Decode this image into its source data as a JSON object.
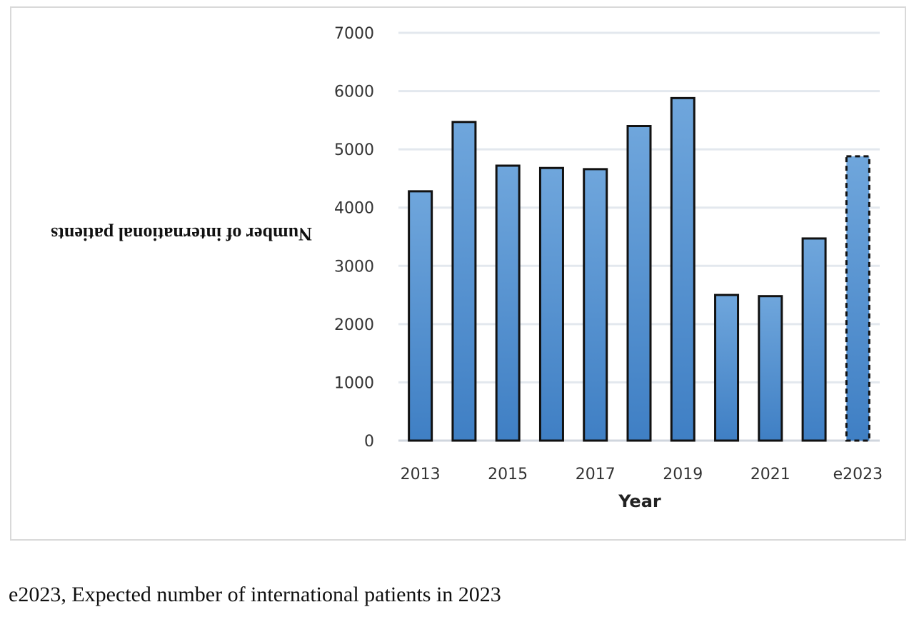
{
  "chart_data": {
    "type": "bar",
    "categories": [
      "2013",
      "2014",
      "2015",
      "2016",
      "2017",
      "2018",
      "2019",
      "2020",
      "2021",
      "2022",
      "e2023"
    ],
    "tick_labels_x": [
      "2013",
      "",
      "2015",
      "",
      "2017",
      "",
      "2019",
      "",
      "2021",
      "",
      "e2023"
    ],
    "values": [
      4280,
      5470,
      4720,
      4680,
      4660,
      5400,
      5880,
      2500,
      2480,
      3470,
      4880
    ],
    "estimated": [
      false,
      false,
      false,
      false,
      false,
      false,
      false,
      false,
      false,
      false,
      true
    ],
    "y_ticks": [
      0,
      1000,
      2000,
      3000,
      4000,
      5000,
      6000,
      7000
    ],
    "ylim": [
      0,
      7000
    ],
    "xlabel": "Year",
    "ylabel": "Number of international patients",
    "ylabel_orientation": "upside-down",
    "grid": true,
    "legend": "none",
    "colors": {
      "bar_top": "#6fa6dc",
      "bar_bottom": "#3f7fc4",
      "bar_outline": "#111111",
      "grid": "#e3e8ee",
      "frame": "#d9d9d9"
    }
  },
  "caption": "e2023, Expected number of international patients in 2023"
}
